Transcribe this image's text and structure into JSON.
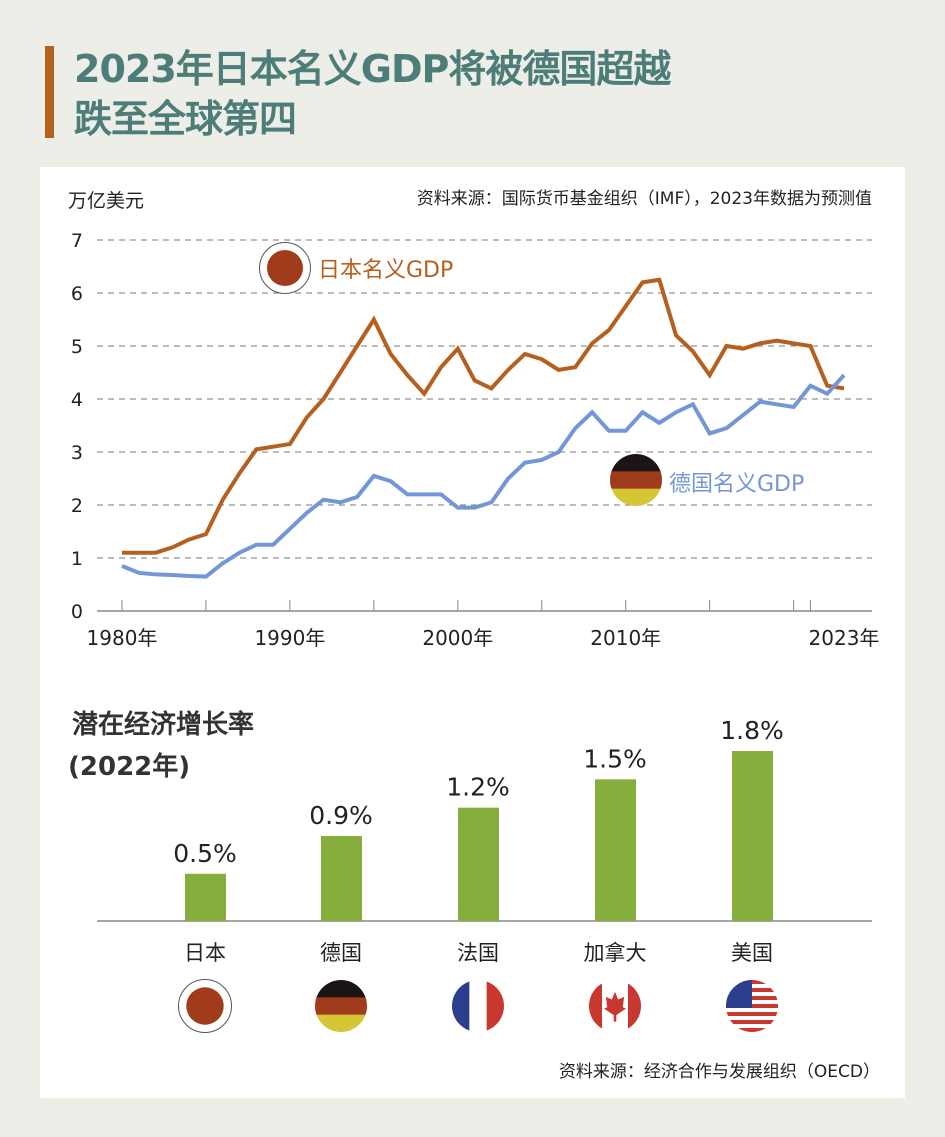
{
  "header": {
    "title_line1": "2023年日本名义GDP将被德国超越",
    "title_line2": "跌至全球第四",
    "accent_color": "#b5601e",
    "title_color": "#4d7d78"
  },
  "chart_data": [
    {
      "type": "line",
      "ylabel": "万亿美元",
      "source": "资料来源：国际货币基金组织（IMF），2023年数据为预测值",
      "ylim": [
        0,
        7
      ],
      "yticks": [
        "0",
        "1",
        "2",
        "3",
        "4",
        "5",
        "6",
        "7"
      ],
      "xticks": [
        {
          "x": 1980,
          "label": "1980年"
        },
        {
          "x": 1990,
          "label": "1990年"
        },
        {
          "x": 2000,
          "label": "2000年"
        },
        {
          "x": 2010,
          "label": "2010年"
        },
        {
          "x": 2023,
          "label": "2023年"
        }
      ],
      "grid": true,
      "x": [
        1980,
        1981,
        1982,
        1983,
        1984,
        1985,
        1986,
        1987,
        1988,
        1989,
        1990,
        1991,
        1992,
        1993,
        1994,
        1995,
        1996,
        1997,
        1998,
        1999,
        2000,
        2001,
        2002,
        2003,
        2004,
        2005,
        2006,
        2007,
        2008,
        2009,
        2010,
        2011,
        2012,
        2013,
        2014,
        2015,
        2016,
        2017,
        2018,
        2019,
        2020,
        2021,
        2022,
        2023
      ],
      "series": [
        {
          "name": "日本名义GDP",
          "color": "#b5601e",
          "flag": "japan",
          "values": [
            1.1,
            1.1,
            1.1,
            1.2,
            1.35,
            1.45,
            2.1,
            2.6,
            3.05,
            3.1,
            3.15,
            3.65,
            4.0,
            4.5,
            5.0,
            5.5,
            4.85,
            4.45,
            4.1,
            4.6,
            4.95,
            4.35,
            4.2,
            4.55,
            4.85,
            4.75,
            4.55,
            4.6,
            5.05,
            5.3,
            5.75,
            6.2,
            6.25,
            5.2,
            4.9,
            4.45,
            5.0,
            4.95,
            5.05,
            5.1,
            5.05,
            5.0,
            4.25,
            4.2
          ]
        },
        {
          "name": "德国名义GDP",
          "color": "#7396d8",
          "flag": "germany",
          "values": [
            0.85,
            0.72,
            0.69,
            0.68,
            0.66,
            0.65,
            0.9,
            1.1,
            1.25,
            1.25,
            1.55,
            1.85,
            2.1,
            2.05,
            2.15,
            2.55,
            2.45,
            2.2,
            2.2,
            2.2,
            1.95,
            1.95,
            2.05,
            2.5,
            2.8,
            2.85,
            3.0,
            3.45,
            3.75,
            3.4,
            3.4,
            3.75,
            3.55,
            3.75,
            3.9,
            3.35,
            3.45,
            3.7,
            3.95,
            3.9,
            3.85,
            4.25,
            4.1,
            4.45
          ]
        }
      ]
    },
    {
      "type": "bar",
      "title": "潜在经济增长率",
      "subtitle": "(2022年)",
      "source": "资料来源：经济合作与发展组织（OECD）",
      "color": "#86ae3c",
      "categories": [
        "日本",
        "德国",
        "法国",
        "加拿大",
        "美国"
      ],
      "flags": [
        "japan",
        "germany",
        "france",
        "canada",
        "usa"
      ],
      "values": [
        0.5,
        0.9,
        1.2,
        1.5,
        1.8
      ],
      "labels": [
        "0.5%",
        "0.9%",
        "1.2%",
        "1.5%",
        "1.8%"
      ]
    }
  ]
}
